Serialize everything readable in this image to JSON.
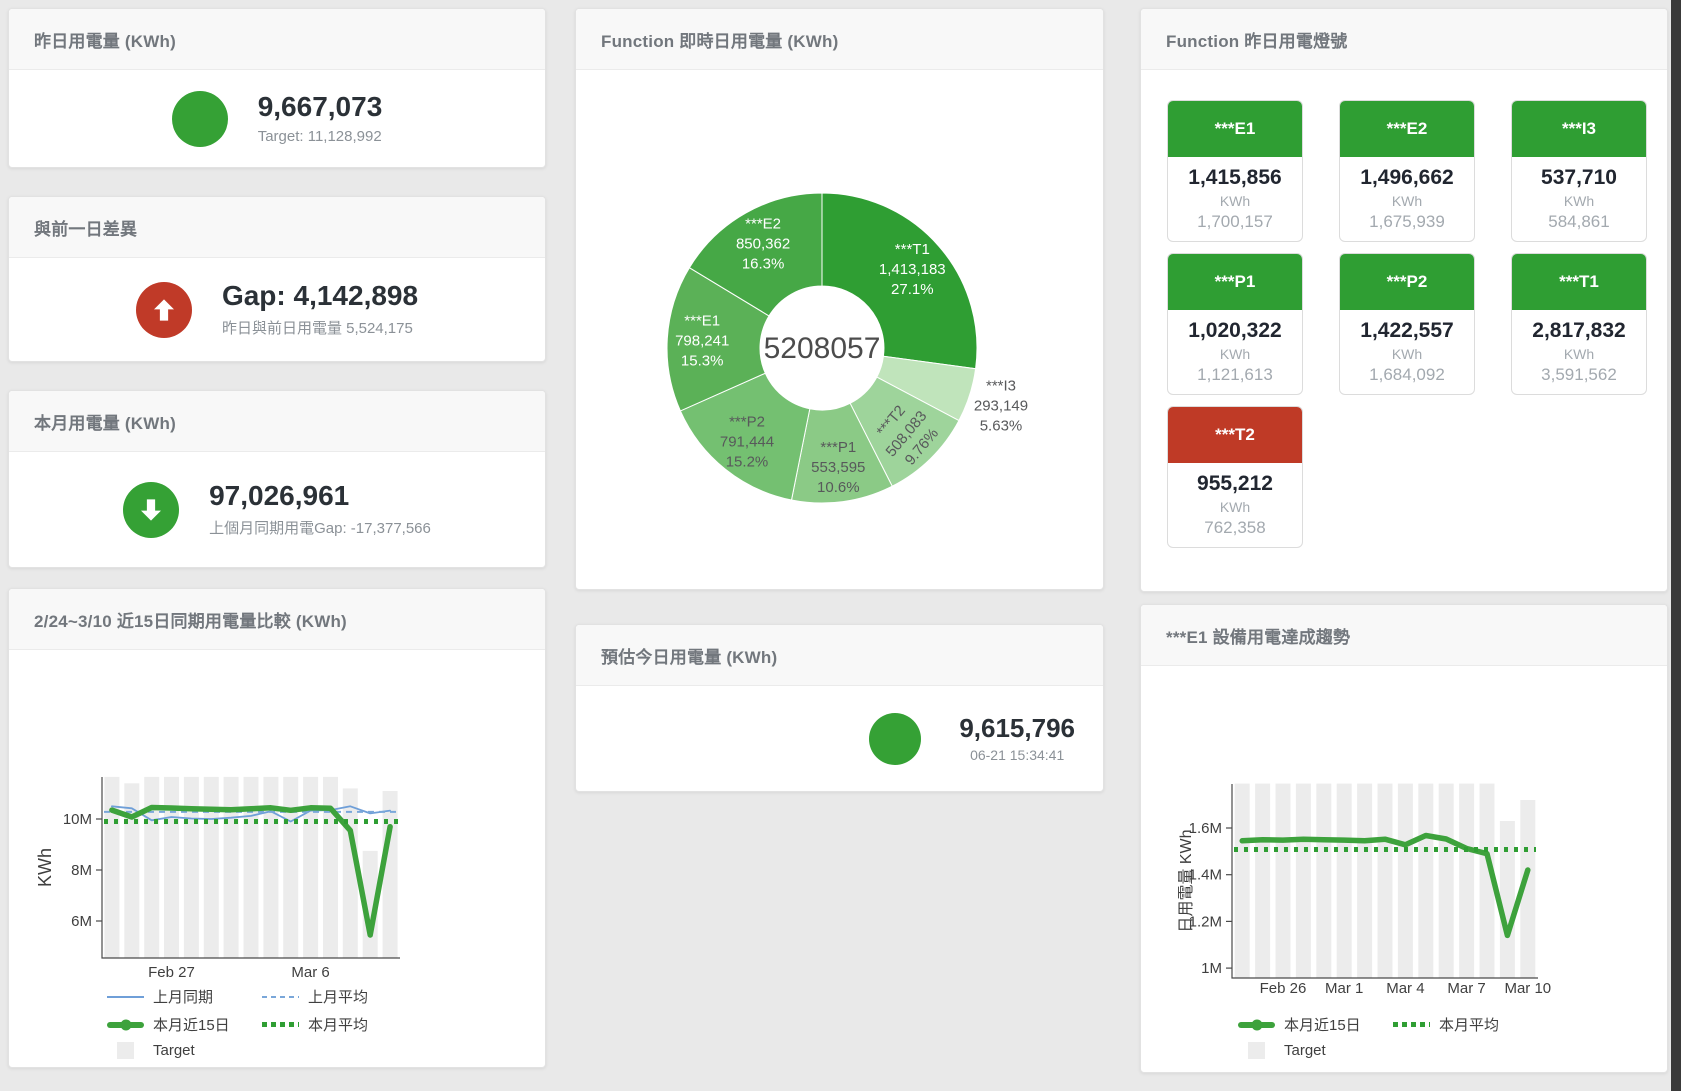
{
  "page": {
    "background": "#e9e9e9",
    "scrollbar_color": "#3a3a3a"
  },
  "stat_yesterday": {
    "title": "昨日用電量 (KWh)",
    "value": "9,667,073",
    "subtext": "Target: 11,128,992",
    "indicator_color": "#35a135"
  },
  "stat_gap": {
    "title": "與前一日差異",
    "value": "Gap: 4,142,898",
    "subtext": "昨日與前日用電量 5,524,175",
    "indicator_color": "#c03a28",
    "direction": "up"
  },
  "stat_month": {
    "title": "本月用電量 (KWh)",
    "value": "97,026,961",
    "subtext": "上個月同期用電Gap: -17,377,566",
    "indicator_color": "#35a135",
    "direction": "down"
  },
  "stat_today": {
    "title": "預估今日用電量 (KWh)",
    "value": "9,615,796",
    "subtext": "06-21 15:34:41",
    "indicator_color": "#35a135"
  },
  "lights": {
    "title": "Function 昨日用電燈號",
    "green": "#2f9e33",
    "red": "#bf3a26",
    "tiles": [
      {
        "name": "***E1",
        "value": "1,415,856",
        "unit": "KWh",
        "target": "1,700,157",
        "status": "green"
      },
      {
        "name": "***E2",
        "value": "1,496,662",
        "unit": "KWh",
        "target": "1,675,939",
        "status": "green"
      },
      {
        "name": "***I3",
        "value": "537,710",
        "unit": "KWh",
        "target": "584,861",
        "status": "green"
      },
      {
        "name": "***P1",
        "value": "1,020,322",
        "unit": "KWh",
        "target": "1,121,613",
        "status": "green"
      },
      {
        "name": "***P2",
        "value": "1,422,557",
        "unit": "KWh",
        "target": "1,684,092",
        "status": "green"
      },
      {
        "name": "***T1",
        "value": "2,817,832",
        "unit": "KWh",
        "target": "3,591,562",
        "status": "green"
      },
      {
        "name": "***T2",
        "value": "955,212",
        "unit": "KWh",
        "target": "762,358",
        "status": "red"
      }
    ]
  },
  "chart_data": [
    {
      "id": "donut",
      "type": "pie",
      "title": "Function 即時日用電量 (KWh)",
      "center_total": "5208057",
      "legend_position": "none",
      "order": "clockwise-from-top",
      "segments": [
        {
          "name": "***T1",
          "value": 1413183,
          "value_label": "1,413,183",
          "pct": "27.1%",
          "color": "#2f9e33",
          "text": "#ffffff"
        },
        {
          "name": "***I3",
          "value": 293149,
          "value_label": "293,149",
          "pct": "5.63%",
          "color": "#c0e4bb",
          "text": "#58595b",
          "outside": true
        },
        {
          "name": "***T2",
          "value": 508083,
          "value_label": "508,083",
          "pct": "9.76%",
          "color": "#9ed49b",
          "text": "#58595b",
          "rotate": -50
        },
        {
          "name": "***P1",
          "value": 553595,
          "value_label": "553,595",
          "pct": "10.6%",
          "color": "#8bca86",
          "text": "#58595b"
        },
        {
          "name": "***P2",
          "value": 791444,
          "value_label": "791,444",
          "pct": "15.2%",
          "color": "#74c071",
          "text": "#58595b"
        },
        {
          "name": "***E1",
          "value": 798241,
          "value_label": "798,241",
          "pct": "15.3%",
          "color": "#5bb157",
          "text": "#ffffff"
        },
        {
          "name": "***E2",
          "value": 850362,
          "value_label": "850,362",
          "pct": "16.3%",
          "color": "#46a846",
          "text": "#ffffff"
        }
      ]
    },
    {
      "id": "compare15",
      "type": "line",
      "title": "2/24~3/10 近15日同期用電量比較 (KWh)",
      "ylabel": "KWh",
      "values_unit": "millions of KWh",
      "grid": false,
      "ylim": [
        4.55,
        11.79
      ],
      "yticks": [
        {
          "label": "6M",
          "v": 6
        },
        {
          "label": "8M",
          "v": 8
        },
        {
          "label": "10M",
          "v": 10
        }
      ],
      "xticks": [
        {
          "label": "Feb 27",
          "i": 3
        },
        {
          "label": "Mar 6",
          "i": 10
        }
      ],
      "x_range": "2/24 - 3/10 (15 days)",
      "target": {
        "name": "Target",
        "color": "#ececec",
        "values": [
          11.65,
          11.4,
          11.65,
          11.65,
          11.65,
          11.65,
          11.65,
          11.65,
          11.65,
          11.65,
          11.65,
          11.65,
          11.2,
          8.75,
          11.1
        ]
      },
      "series": [
        {
          "name": "上月同期",
          "color": "#6f9fd8",
          "width": 1.8,
          "dash": "",
          "values": [
            10.5,
            10.42,
            9.95,
            10.08,
            10.02,
            10.0,
            10.05,
            10.12,
            10.3,
            9.9,
            10.33,
            10.35,
            10.5,
            10.22,
            10.33
          ]
        },
        {
          "name": "上月平均",
          "color": "#7aa7d9",
          "width": 2,
          "dash": "6 5",
          "constant": 10.28
        },
        {
          "name": "本月近15日",
          "color": "#3da23c",
          "width": 5.5,
          "dash": "",
          "values": [
            10.35,
            10.08,
            10.45,
            10.43,
            10.4,
            10.38,
            10.36,
            10.4,
            10.44,
            10.34,
            10.44,
            10.42,
            9.55,
            5.45,
            9.7
          ]
        },
        {
          "name": "本月平均",
          "color": "#2f9e33",
          "width": 5,
          "dash": "4 6",
          "constant": 9.9
        }
      ],
      "legend": [
        {
          "label": "上月同期",
          "type": "blue-solid"
        },
        {
          "label": "上月平均",
          "type": "blue-dashed"
        },
        {
          "label": "本月近15日",
          "type": "green-thick"
        },
        {
          "label": "本月平均",
          "type": "green-dotted"
        },
        {
          "label": "Target",
          "type": "target"
        }
      ]
    },
    {
      "id": "e1trend",
      "type": "line",
      "title": "***E1 設備用電達成趨勢",
      "ylabel": "日用電量 KWh",
      "values_unit": "millions of KWh",
      "grid": false,
      "ylim": [
        0.96,
        1.79
      ],
      "yticks": [
        {
          "label": "1M",
          "v": 1
        },
        {
          "label": "1.2M",
          "v": 1.2
        },
        {
          "label": "1.4M",
          "v": 1.4
        },
        {
          "label": "1.6M",
          "v": 1.6
        }
      ],
      "xticks": [
        {
          "label": "Feb 26",
          "i": 2
        },
        {
          "label": "Mar 1",
          "i": 5
        },
        {
          "label": "Mar 4",
          "i": 8
        },
        {
          "label": "Mar 7",
          "i": 11
        },
        {
          "label": "Mar 10",
          "i": 14
        }
      ],
      "x_range": "2/24 - 3/10 (15 days)",
      "target": {
        "name": "Target",
        "color": "#ececec",
        "values": [
          1.79,
          1.79,
          1.79,
          1.79,
          1.79,
          1.79,
          1.79,
          1.79,
          1.79,
          1.79,
          1.79,
          1.79,
          1.79,
          1.63,
          1.72
        ]
      },
      "series": [
        {
          "name": "本月近15日",
          "color": "#3da23c",
          "width": 5.5,
          "dash": "",
          "values": [
            1.545,
            1.55,
            1.548,
            1.552,
            1.55,
            1.548,
            1.545,
            1.552,
            1.528,
            1.568,
            1.553,
            1.512,
            1.49,
            1.14,
            1.42
          ]
        },
        {
          "name": "本月平均",
          "color": "#2f9e33",
          "width": 5,
          "dash": "4 6",
          "constant": 1.508
        }
      ],
      "legend": [
        {
          "label": "本月近15日",
          "type": "green-thick"
        },
        {
          "label": "本月平均",
          "type": "green-dotted"
        },
        {
          "label": "Target",
          "type": "target"
        }
      ]
    }
  ]
}
